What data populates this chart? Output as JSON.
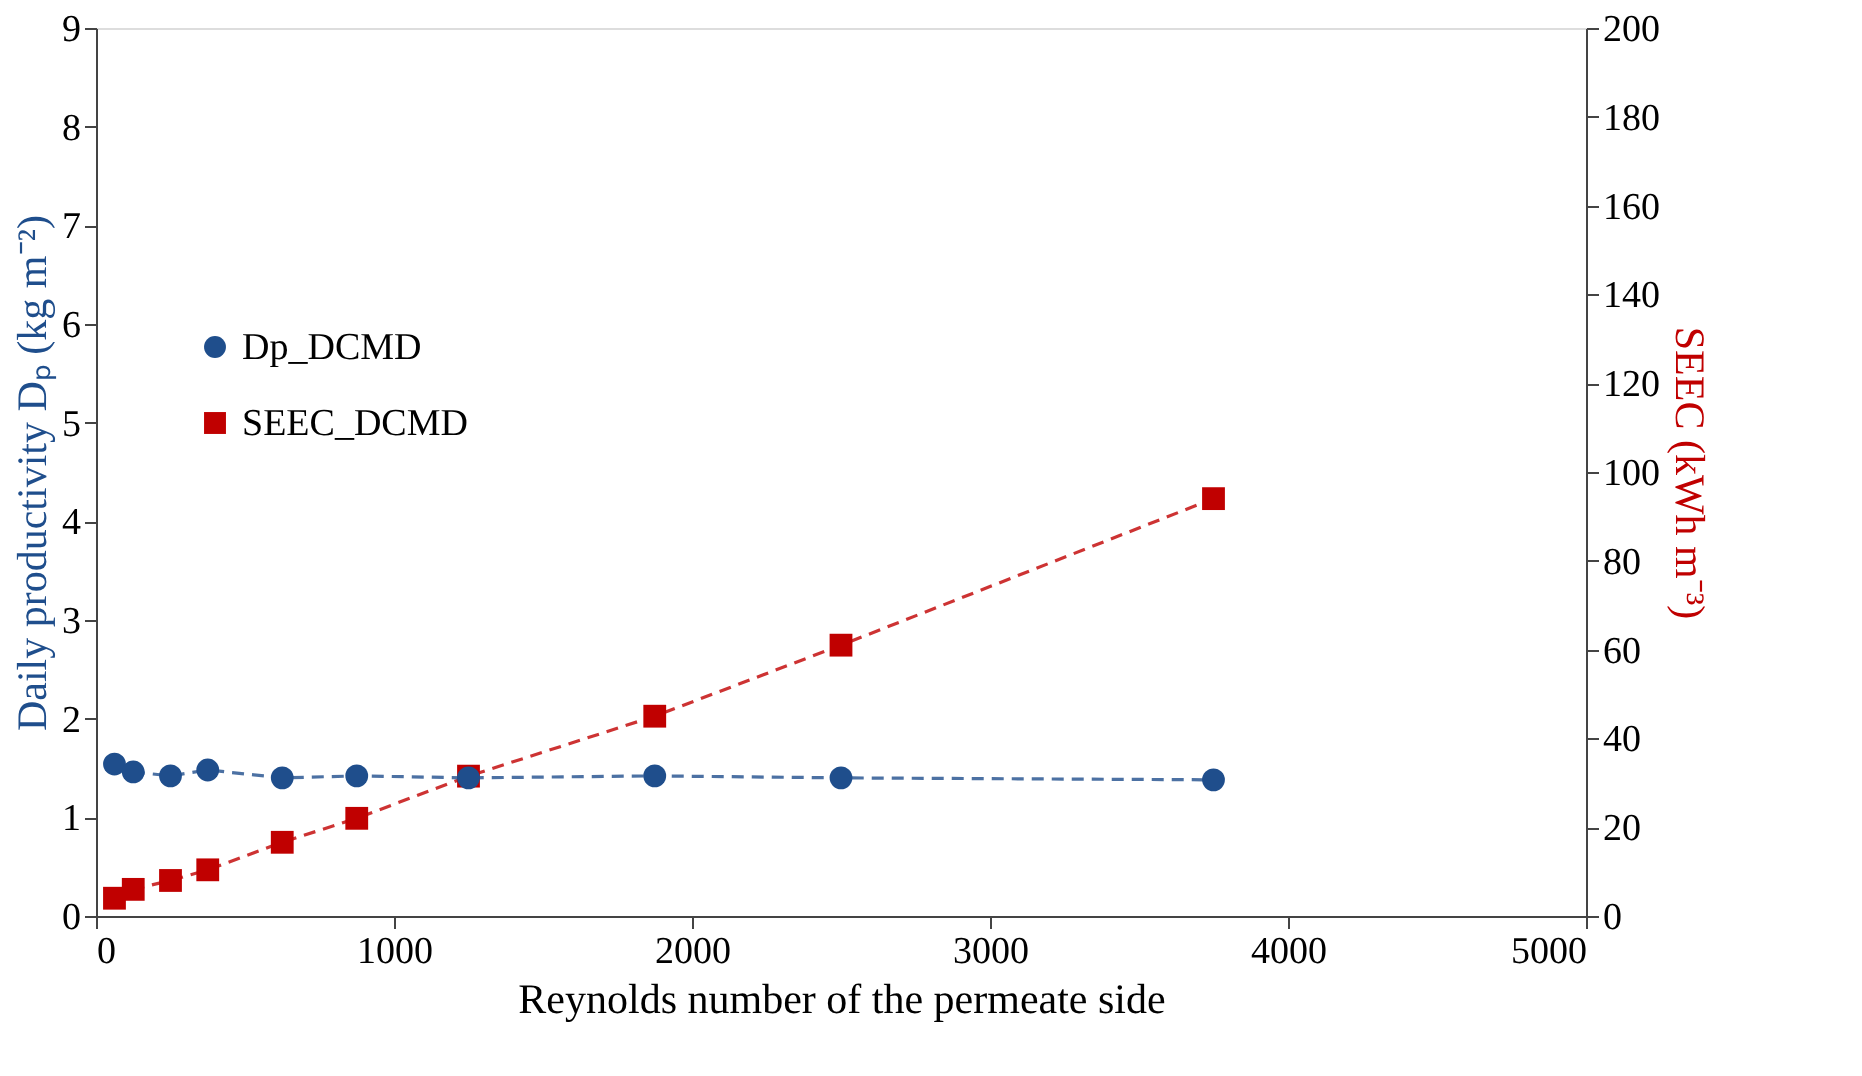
{
  "chart_data": {
    "type": "line",
    "xlabel": "Reynolds number of the permeate side",
    "ylabel": "Daily productivity Dₚ (kg m⁻²)",
    "y2label": "SEEC (kWh m⁻³)",
    "x": [
      62,
      125,
      250,
      375,
      625,
      875,
      1250,
      1875,
      2500,
      3750
    ],
    "series": [
      {
        "name": "Dp_DCMD",
        "color": "#1f4e8c",
        "marker": "circle",
        "values": [
          1.54,
          1.46,
          1.42,
          1.48,
          1.4,
          1.42,
          1.4,
          1.42,
          1.4,
          1.38
        ]
      },
      {
        "name": "SEEC_DCMD",
        "color": "#c00000",
        "marker": "square",
        "axis": "y2",
        "values": [
          4,
          6,
          8,
          10.4,
          16.6,
          22,
          31.5,
          45,
          61,
          94
        ]
      }
    ],
    "xlim": [
      0,
      5000
    ],
    "xticks": [
      0,
      1000,
      2000,
      3000,
      4000,
      5000
    ],
    "ylim": [
      0,
      9
    ],
    "yticks": [
      0,
      1,
      2,
      3,
      4,
      5,
      6,
      7,
      8,
      9
    ],
    "y2lim": [
      0,
      200
    ],
    "y2ticks": [
      0,
      20,
      40,
      60,
      80,
      100,
      120,
      140,
      160,
      180,
      200
    ],
    "line_style": "dashed",
    "grid": false,
    "legend": "left"
  }
}
